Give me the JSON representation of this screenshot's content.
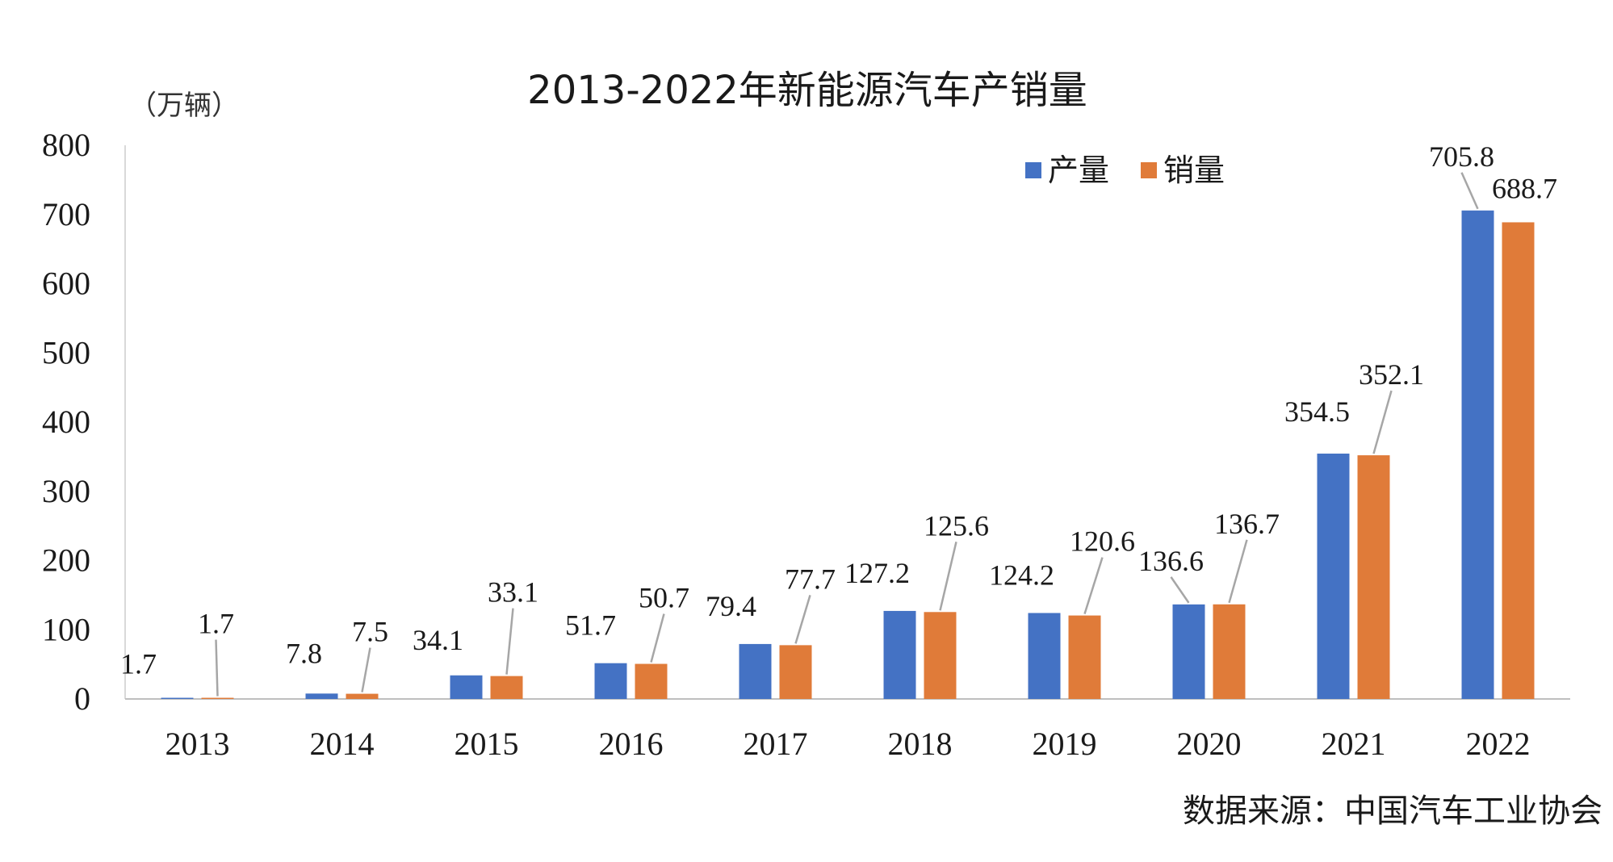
{
  "chart_data": {
    "type": "bar",
    "title": "2013-2022年新能源汽车产销量",
    "unit_label": "（万辆）",
    "source_note": "数据来源：中国汽车工业协会",
    "categories": [
      "2013",
      "2014",
      "2015",
      "2016",
      "2017",
      "2018",
      "2019",
      "2020",
      "2021",
      "2022"
    ],
    "series": [
      {
        "name": "产量",
        "color": "#4472c4",
        "values": [
          1.7,
          7.8,
          34.1,
          51.7,
          79.4,
          127.2,
          124.2,
          136.6,
          354.5,
          705.8
        ]
      },
      {
        "name": "销量",
        "color": "#e07b39",
        "values": [
          1.7,
          7.5,
          33.1,
          50.7,
          77.7,
          125.6,
          120.6,
          136.7,
          352.1,
          688.7
        ]
      }
    ],
    "ylim": [
      0,
      800
    ],
    "yticks": [
      0,
      100,
      200,
      300,
      400,
      500,
      600,
      700,
      800
    ],
    "legend_position": "top-right",
    "grid": false
  }
}
